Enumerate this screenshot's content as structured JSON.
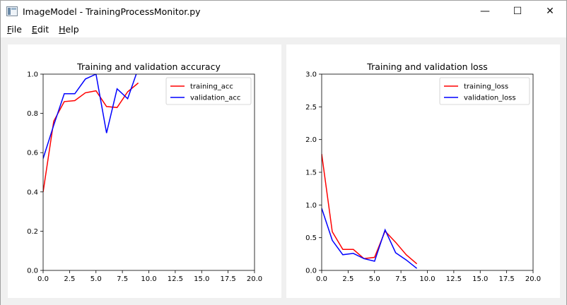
{
  "window": {
    "title": "ImageModel - TrainingProcessMonitor.py",
    "minimize_glyph": "—",
    "maximize_glyph": "☐",
    "close_glyph": "✕"
  },
  "menu": {
    "items": [
      {
        "accel": "F",
        "rest": "ile"
      },
      {
        "accel": "E",
        "rest": "dit"
      },
      {
        "accel": "H",
        "rest": "elp"
      }
    ]
  },
  "colors": {
    "training": "#ff0000",
    "validation": "#0000ff"
  },
  "chart_data": [
    {
      "type": "line",
      "title": "Training and validation accuracy",
      "xlabel": "",
      "ylabel": "",
      "xlim": [
        0,
        20
      ],
      "ylim": [
        0,
        1
      ],
      "xticks": [
        "0.0",
        "2.5",
        "5.0",
        "7.5",
        "10.0",
        "12.5",
        "15.0",
        "17.5",
        "20.0"
      ],
      "yticks": [
        "0.0",
        "0.2",
        "0.4",
        "0.6",
        "0.8",
        "1.0"
      ],
      "legend": "top-right",
      "grid": false,
      "series": [
        {
          "name": "training_acc",
          "color": "#ff0000",
          "x": [
            0,
            1,
            2,
            3,
            4,
            5,
            6,
            7,
            8,
            9
          ],
          "y": [
            0.4,
            0.76,
            0.86,
            0.865,
            0.905,
            0.915,
            0.835,
            0.83,
            0.91,
            0.955
          ]
        },
        {
          "name": "validation_acc",
          "color": "#0000ff",
          "x": [
            0,
            1,
            2,
            3,
            4,
            5,
            6,
            7,
            8,
            9
          ],
          "y": [
            0.57,
            0.74,
            0.9,
            0.9,
            0.975,
            1.0,
            0.7,
            0.925,
            0.875,
            1.03
          ]
        }
      ]
    },
    {
      "type": "line",
      "title": "Training and validation loss",
      "xlabel": "",
      "ylabel": "",
      "xlim": [
        0,
        20
      ],
      "ylim": [
        0,
        3
      ],
      "xticks": [
        "0.0",
        "2.5",
        "5.0",
        "7.5",
        "10.0",
        "12.5",
        "15.0",
        "17.5",
        "20.0"
      ],
      "yticks": [
        "0.0",
        "0.5",
        "1.0",
        "1.5",
        "2.0",
        "2.5",
        "3.0"
      ],
      "legend": "top-right",
      "grid": false,
      "series": [
        {
          "name": "training_loss",
          "color": "#ff0000",
          "x": [
            0,
            1,
            2,
            3,
            4,
            5,
            6,
            7,
            8,
            9
          ],
          "y": [
            1.78,
            0.59,
            0.32,
            0.32,
            0.18,
            0.2,
            0.6,
            0.43,
            0.24,
            0.1
          ]
        },
        {
          "name": "validation_loss",
          "color": "#0000ff",
          "x": [
            0,
            1,
            2,
            3,
            4,
            5,
            6,
            7,
            8,
            9
          ],
          "y": [
            0.95,
            0.46,
            0.24,
            0.26,
            0.18,
            0.14,
            0.62,
            0.27,
            0.16,
            0.03
          ]
        }
      ]
    }
  ]
}
